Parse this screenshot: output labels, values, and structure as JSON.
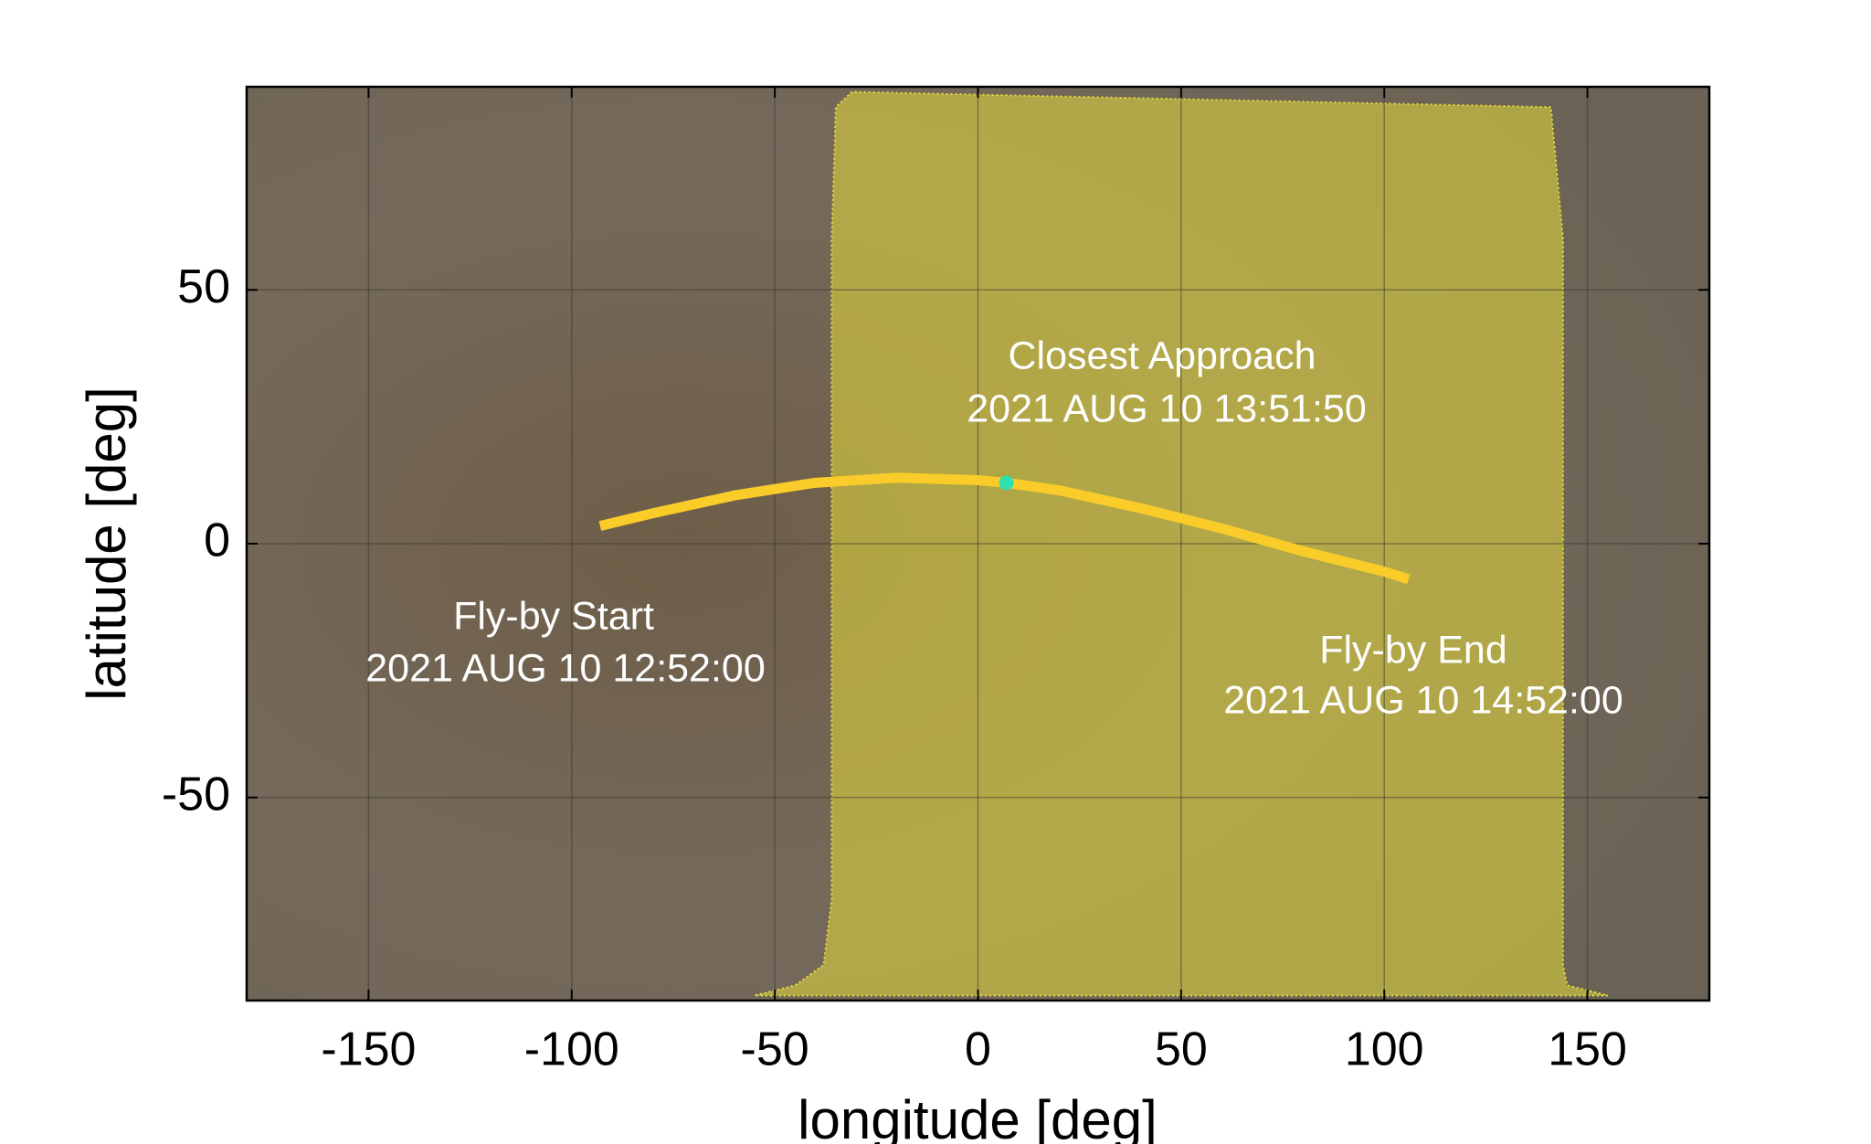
{
  "chart_data": {
    "type": "line",
    "xlabel": "longitude [deg]",
    "ylabel": "latitude [deg]",
    "xlim": [
      -180,
      180
    ],
    "ylim": [
      -90,
      90
    ],
    "xticks": [
      -150,
      -100,
      -50,
      0,
      50,
      100,
      150
    ],
    "yticks": [
      -50,
      0,
      50
    ],
    "grid": true,
    "dayside": {
      "color": "#e6dc3c",
      "x": [
        -31,
        -35,
        -36,
        -36,
        -38,
        -45,
        -55,
        155,
        145,
        144,
        144,
        144,
        141
      ],
      "values": [
        89,
        86,
        60,
        -70,
        -83,
        -87,
        -89,
        -89,
        -87,
        -83,
        -70,
        60,
        86
      ]
    },
    "series": [
      {
        "color": "#f9cc2a",
        "x": [
          -93,
          -80,
          -60,
          -40,
          -20,
          0,
          7,
          20,
          40,
          60,
          80,
          100,
          106
        ],
        "values": [
          3.5,
          6,
          9.5,
          12,
          13,
          12.5,
          12,
          10.5,
          7,
          3,
          -1.5,
          -5.5,
          -7
        ]
      }
    ],
    "closest_approach": {
      "x": 7,
      "y": 12,
      "color": "#2de0b0"
    },
    "annotations": [
      "Closest Approach",
      "2021 AUG 10 13:51:50",
      "Fly-by Start",
      "2021 AUG 10 12:52:00",
      "Fly-by End",
      "2021 AUG 10 14:52:00"
    ]
  }
}
